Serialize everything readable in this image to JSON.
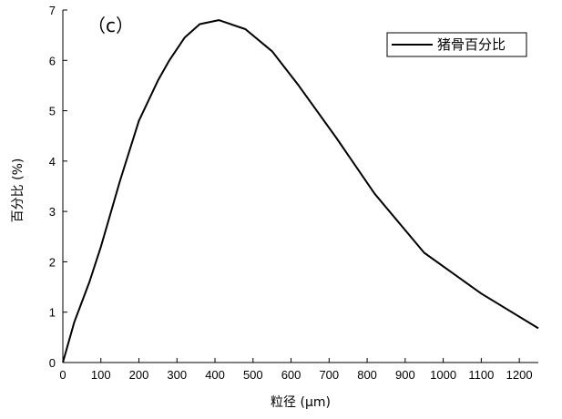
{
  "chart_data": {
    "type": "line",
    "panel_label": "（c）",
    "xlabel": "粒径 (μm)",
    "ylabel": "百分比 (%)",
    "xlim": [
      0,
      1250
    ],
    "ylim": [
      0,
      7
    ],
    "xticks": [
      0,
      100,
      200,
      300,
      400,
      500,
      600,
      700,
      800,
      900,
      1000,
      1100,
      1200
    ],
    "yticks": [
      0,
      1,
      2,
      3,
      4,
      5,
      6,
      7
    ],
    "grid": false,
    "legend_position": "top-right",
    "series": [
      {
        "name": "猪骨百分比",
        "color": "#000000",
        "x": [
          0,
          30,
          70,
          100,
          150,
          200,
          250,
          280,
          320,
          360,
          410,
          480,
          550,
          620,
          720,
          820,
          950,
          1100,
          1250
        ],
        "y": [
          0,
          0.8,
          1.6,
          2.3,
          3.6,
          4.8,
          5.6,
          6.0,
          6.45,
          6.72,
          6.8,
          6.62,
          6.18,
          5.5,
          4.45,
          3.35,
          2.18,
          1.37,
          0.68
        ]
      }
    ]
  }
}
